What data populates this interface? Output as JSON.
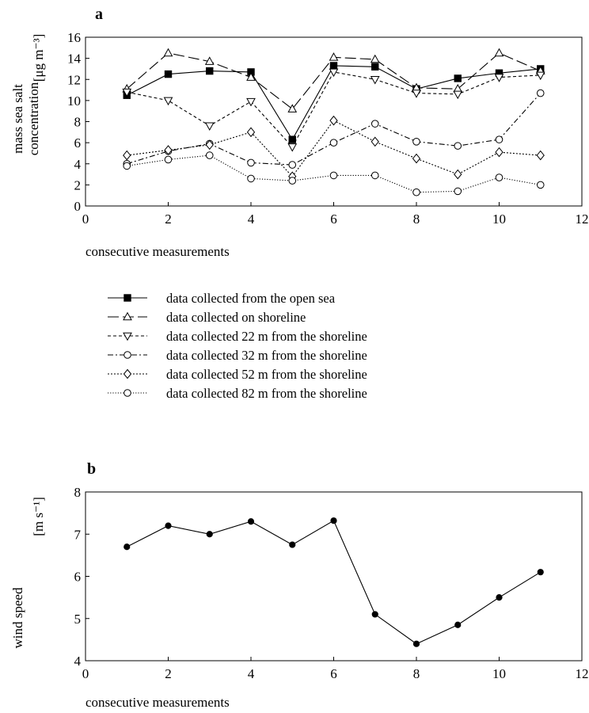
{
  "chart_data": [
    {
      "type": "line",
      "panel_label": "a",
      "xlabel": "consecutive measurements",
      "ylabel_line1": "mass sea salt",
      "ylabel_line2": "concentration",
      "ylabel_unit": "[μg m⁻³]",
      "xlim": [
        0,
        12
      ],
      "ylim": [
        0,
        16
      ],
      "xticks": [
        0,
        2,
        4,
        6,
        8,
        10,
        12
      ],
      "yticks": [
        0,
        2,
        4,
        6,
        8,
        10,
        12,
        14,
        16
      ],
      "grid": false,
      "legend_position": "below",
      "x": [
        1,
        2,
        3,
        4,
        5,
        6,
        7,
        8,
        9,
        10,
        11
      ],
      "series": [
        {
          "name": "data collected from the open sea",
          "line_style": "solid",
          "marker": "filled-square",
          "values": [
            10.5,
            12.5,
            12.8,
            12.7,
            6.3,
            13.3,
            13.2,
            11.1,
            12.1,
            12.6,
            13.0
          ]
        },
        {
          "name": "data collected on shoreline",
          "line_style": "long-dash",
          "marker": "open-triangle-up",
          "values": [
            11.1,
            14.5,
            13.7,
            12.2,
            9.2,
            14.1,
            13.9,
            11.2,
            11.1,
            14.5,
            12.8
          ]
        },
        {
          "name": "data collected 22 m from the shoreline",
          "line_style": "short-dash",
          "marker": "open-triangle-down",
          "values": [
            10.8,
            10.0,
            7.6,
            9.9,
            5.6,
            12.7,
            12.0,
            10.7,
            10.6,
            12.2,
            12.4
          ]
        },
        {
          "name": "data collected 32 m from the shoreline",
          "line_style": "dash-dot",
          "marker": "open-circle",
          "values": [
            4.0,
            5.2,
            5.9,
            4.1,
            3.9,
            6.0,
            7.8,
            6.1,
            5.7,
            6.3,
            10.7
          ]
        },
        {
          "name": "data collected 52 m from the shoreline",
          "line_style": "dotted",
          "marker": "open-diamond",
          "values": [
            4.8,
            5.3,
            5.8,
            7.0,
            2.8,
            8.1,
            6.1,
            4.5,
            3.0,
            5.1,
            4.8
          ]
        },
        {
          "name": "data collected 82 m from the shoreline",
          "line_style": "fine-dotted",
          "marker": "open-circle",
          "values": [
            3.8,
            4.4,
            4.8,
            2.6,
            2.4,
            2.9,
            2.9,
            1.3,
            1.4,
            2.7,
            2.0
          ]
        }
      ]
    },
    {
      "type": "line",
      "panel_label": "b",
      "xlabel": "consecutive measurements",
      "ylabel_line1": "wind speed",
      "ylabel_unit": "[m s⁻¹]",
      "xlim": [
        0,
        12
      ],
      "ylim": [
        4,
        8
      ],
      "xticks": [
        0,
        2,
        4,
        6,
        8,
        10,
        12
      ],
      "yticks": [
        4,
        5,
        6,
        7,
        8
      ],
      "grid": false,
      "x": [
        1,
        2,
        3,
        4,
        5,
        6,
        7,
        8,
        9,
        10,
        11
      ],
      "series": [
        {
          "line_style": "solid",
          "marker": "filled-circle",
          "values": [
            6.7,
            7.2,
            7.0,
            7.3,
            6.75,
            7.32,
            5.1,
            4.4,
            4.85,
            5.5,
            6.1
          ]
        }
      ]
    }
  ]
}
